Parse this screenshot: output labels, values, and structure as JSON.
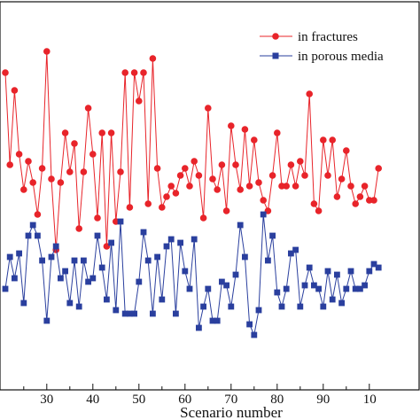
{
  "chart_data": {
    "type": "line",
    "title": "",
    "xlabel": "Scenario number",
    "ylabel": "",
    "x_ticks": [
      "30",
      "40",
      "50",
      "60",
      "70",
      "80",
      "90",
      "10"
    ],
    "xlim": [
      21,
      102
    ],
    "ylim": [
      0,
      100
    ],
    "grid": false,
    "legend_position": "top-right",
    "x": [
      21,
      22,
      23,
      24,
      25,
      26,
      27,
      28,
      29,
      30,
      31,
      32,
      33,
      34,
      35,
      36,
      37,
      38,
      39,
      40,
      41,
      42,
      43,
      44,
      45,
      46,
      47,
      48,
      49,
      50,
      51,
      52,
      53,
      54,
      55,
      56,
      57,
      58,
      59,
      60,
      61,
      62,
      63,
      64,
      65,
      66,
      67,
      68,
      69,
      70,
      71,
      72,
      73,
      74,
      75,
      76,
      77,
      78,
      79,
      80,
      81,
      82,
      83,
      84,
      85,
      86,
      87,
      88,
      89,
      90,
      91,
      92,
      93,
      94,
      95,
      96,
      97,
      98,
      99,
      100,
      101,
      102
    ],
    "series": [
      {
        "name": "in fractures",
        "color": "#e8242a",
        "marker": "circle",
        "values": [
          84,
          58,
          79,
          61,
          51,
          59,
          53,
          44,
          57,
          90,
          54,
          34,
          53,
          67,
          56,
          64,
          40,
          56,
          74,
          61,
          43,
          67,
          35,
          67,
          42,
          56,
          84,
          46,
          84,
          76,
          84,
          47,
          88,
          57,
          46,
          49,
          52,
          50,
          55,
          57,
          52,
          59,
          55,
          43,
          74,
          54,
          51,
          58,
          45,
          69,
          58,
          51,
          68,
          52,
          65,
          53,
          48,
          45,
          55,
          67,
          52,
          52,
          58,
          52,
          59,
          55,
          78,
          47,
          45,
          65,
          55,
          65,
          49,
          54,
          62,
          52,
          47,
          49,
          52,
          48,
          48,
          57
        ]
      },
      {
        "name": "in porous media",
        "color": "#2a3f9e",
        "marker": "square",
        "values": [
          23,
          32,
          26,
          33,
          19,
          38,
          41,
          38,
          31,
          14,
          32,
          35,
          26,
          28,
          19,
          31,
          18,
          31,
          25,
          26,
          38,
          29,
          20,
          36,
          17,
          42,
          16,
          16,
          16,
          25,
          39,
          31,
          16,
          32,
          20,
          35,
          37,
          16,
          36,
          28,
          23,
          37,
          12,
          18,
          23,
          14,
          14,
          25,
          24,
          18,
          27,
          41,
          32,
          13,
          10,
          17,
          44,
          31,
          38,
          22,
          18,
          23,
          33,
          34,
          18,
          24,
          29,
          24,
          23,
          18,
          28,
          20,
          27,
          19,
          23,
          28,
          23,
          23,
          24,
          28,
          30,
          29
        ]
      }
    ]
  }
}
